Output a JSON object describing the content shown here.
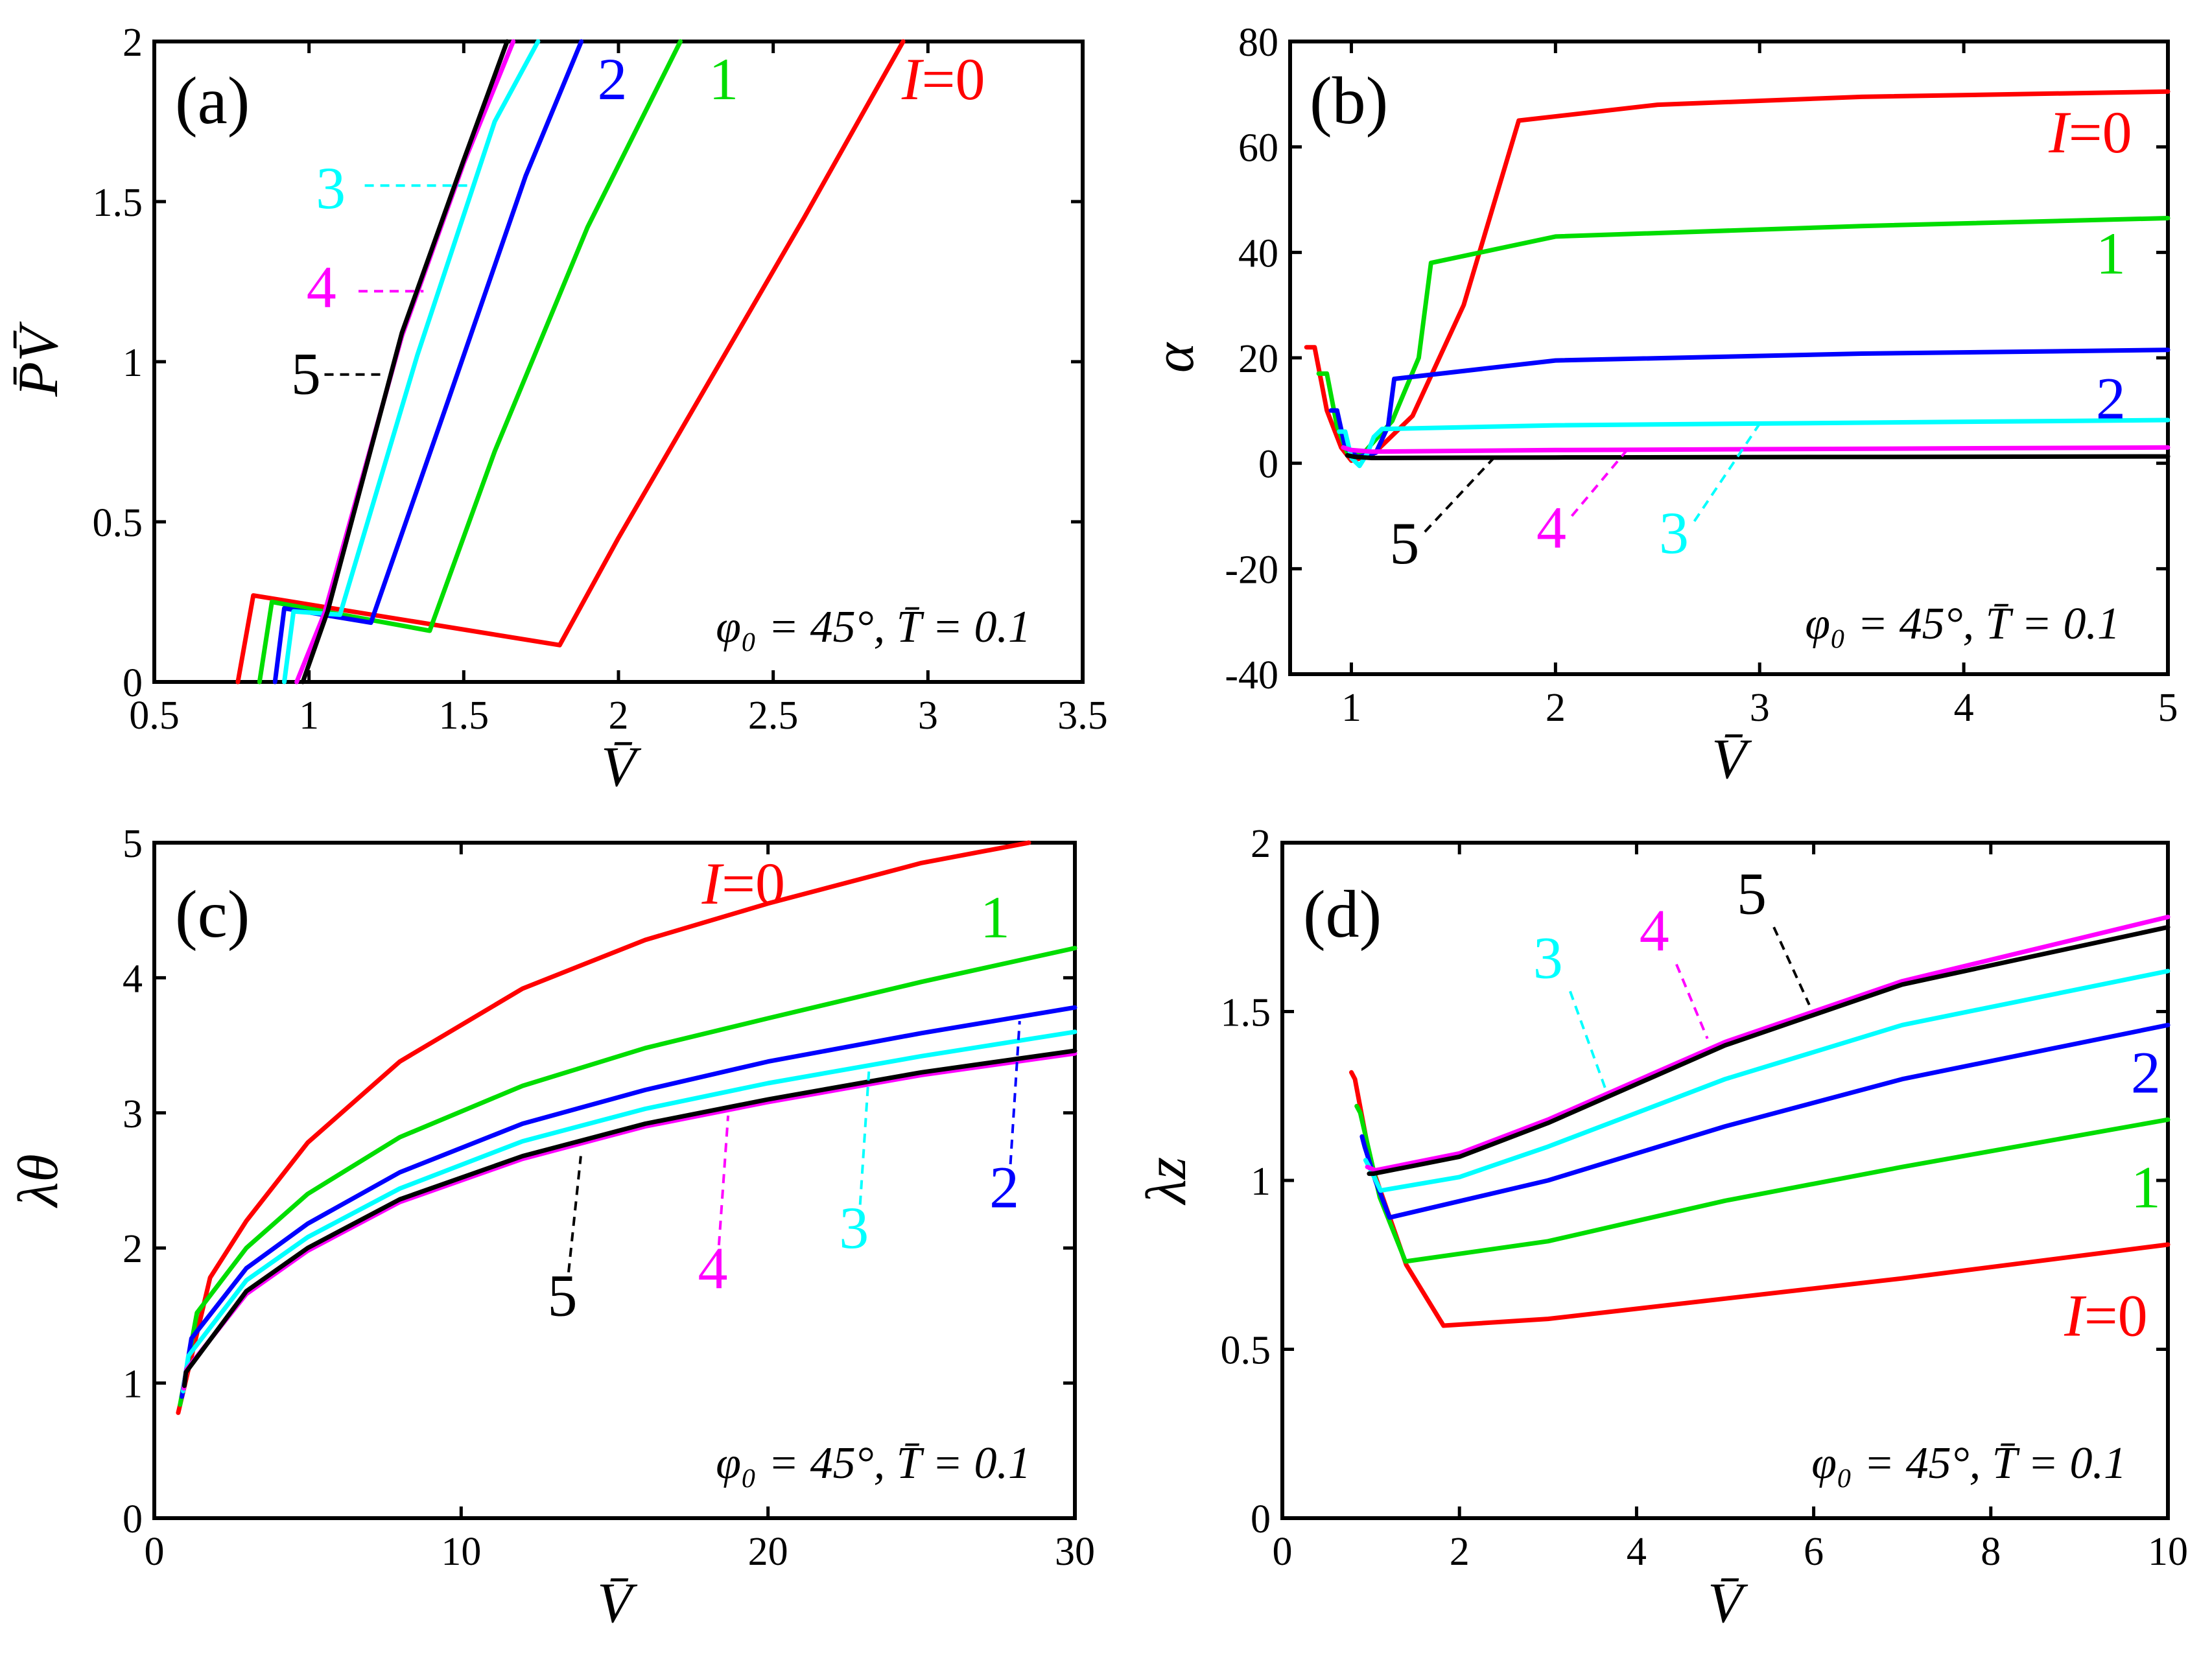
{
  "colors": {
    "I0": "#ff0000",
    "I1": "#00dd00",
    "I2": "#0000ff",
    "I3": "#00ffff",
    "I4": "#ff00ff",
    "I5": "#000000"
  },
  "chart_data": [
    {
      "id": "a",
      "type": "line",
      "panel_label": "(a)",
      "xlabel": "V̄",
      "ylabel": "P̄V̄",
      "xlim": [
        0.5,
        3.5
      ],
      "ylim": [
        0,
        2
      ],
      "xticks": [
        "0.5",
        "1",
        "1.5",
        "2",
        "2.5",
        "3",
        "3.5"
      ],
      "yticks": [
        "0",
        "0.5",
        "1",
        "1.5",
        "2"
      ],
      "annotation": "φ₀ = 45°, T̄ = 0.1",
      "series": [
        {
          "name": "I=0",
          "label_prefix": "I",
          "label": "=0",
          "color_key": "I0",
          "x": [
            0.77,
            0.82,
            1.81,
            2.0,
            2.3,
            2.6,
            2.92
          ],
          "y": [
            0,
            0.27,
            0.115,
            0.45,
            0.95,
            1.45,
            2.0
          ]
        },
        {
          "name": "1",
          "label": "1",
          "color_key": "I1",
          "x": [
            0.84,
            0.88,
            1.39,
            1.6,
            1.9,
            2.2
          ],
          "y": [
            0,
            0.25,
            0.16,
            0.72,
            1.42,
            2.0
          ]
        },
        {
          "name": "2",
          "label": "2",
          "color_key": "I2",
          "x": [
            0.89,
            0.92,
            1.2,
            1.45,
            1.7,
            1.88
          ],
          "y": [
            0,
            0.23,
            0.185,
            0.88,
            1.58,
            2.0
          ]
        },
        {
          "name": "3",
          "label": "3",
          "color_key": "I3",
          "x": [
            0.92,
            0.95,
            1.1,
            1.35,
            1.6,
            1.74
          ],
          "y": [
            0,
            0.22,
            0.21,
            1.02,
            1.75,
            2.0
          ]
        },
        {
          "name": "4",
          "label": "4",
          "color_key": "I4",
          "x": [
            0.96,
            1.05,
            1.3,
            1.5,
            1.66
          ],
          "y": [
            0,
            0.215,
            1.08,
            1.62,
            2.0
          ]
        },
        {
          "name": "5",
          "label": "5",
          "color_key": "I5",
          "x": [
            0.98,
            1.06,
            1.3,
            1.5,
            1.64
          ],
          "y": [
            0,
            0.22,
            1.09,
            1.63,
            2.0
          ]
        }
      ],
      "labels": [
        {
          "text_key": "I0",
          "at": [
            3.05,
            1.82
          ],
          "anchor": "middle",
          "italic_prefix": true
        },
        {
          "text_key": "1",
          "at": [
            2.34,
            1.82
          ],
          "anchor": "middle"
        },
        {
          "text_key": "2",
          "at": [
            1.98,
            1.82
          ],
          "anchor": "middle"
        },
        {
          "text_key": "3",
          "at": [
            1.07,
            1.48
          ],
          "anchor": "middle",
          "leader": [
            [
              1.18,
              1.55
            ],
            [
              1.53,
              1.55
            ]
          ]
        },
        {
          "text_key": "4",
          "at": [
            1.04,
            1.17
          ],
          "anchor": "middle",
          "leader": [
            [
              1.16,
              1.22
            ],
            [
              1.37,
              1.22
            ]
          ]
        },
        {
          "text_key": "5",
          "at": [
            0.99,
            0.9
          ],
          "anchor": "middle",
          "leader": [
            [
              1.05,
              0.96
            ],
            [
              1.25,
              0.96
            ]
          ]
        }
      ]
    },
    {
      "id": "b",
      "type": "line",
      "panel_label": "(b)",
      "xlabel": "V̄",
      "ylabel": "α",
      "xlim": [
        0.7,
        5
      ],
      "ylim": [
        -40,
        80
      ],
      "xticks": [
        "1",
        "2",
        "3",
        "4",
        "5"
      ],
      "yticks": [
        "-40",
        "-20",
        "0",
        "20",
        "40",
        "60",
        "80"
      ],
      "annotation": "φ₀ = 45°, T̄ = 0.1",
      "series": [
        {
          "name": "I=0",
          "color_key": "I0",
          "x": [
            0.78,
            0.82,
            0.88,
            0.95,
            1.0,
            1.1,
            1.3,
            1.55,
            1.82,
            2.5,
            3.5,
            5.0
          ],
          "y": [
            22,
            22,
            10,
            3,
            0.5,
            1.5,
            9,
            30,
            65,
            68,
            69.5,
            70.5
          ]
        },
        {
          "name": "1",
          "color_key": "I1",
          "x": [
            0.84,
            0.88,
            0.93,
            0.98,
            1.05,
            1.2,
            1.33,
            1.39,
            2.0,
            3.5,
            5.0
          ],
          "y": [
            17,
            17,
            7,
            2,
            1.5,
            8,
            20,
            38,
            43,
            45,
            46.5
          ]
        },
        {
          "name": "2",
          "color_key": "I2",
          "x": [
            0.9,
            0.93,
            0.97,
            1.03,
            1.12,
            1.18,
            1.21,
            2.0,
            3.5,
            5.0
          ],
          "y": [
            10,
            10,
            3,
            1.2,
            2,
            7,
            16,
            19.5,
            20.8,
            21.5
          ]
        },
        {
          "name": "3",
          "color_key": "I3",
          "x": [
            0.94,
            0.97,
            1.0,
            1.04,
            1.08,
            1.11,
            1.15,
            2.0,
            5.0
          ],
          "y": [
            6,
            6,
            1,
            -0.5,
            2,
            5,
            6.5,
            7.2,
            8.2
          ]
        },
        {
          "name": "4",
          "color_key": "I4",
          "x": [
            0.96,
            1.0,
            1.1,
            2.0,
            5.0
          ],
          "y": [
            3,
            2.5,
            2.2,
            2.5,
            3
          ]
        },
        {
          "name": "5",
          "color_key": "I5",
          "x": [
            0.98,
            1.02,
            1.1,
            2.0,
            5.0
          ],
          "y": [
            1.5,
            1.2,
            1.0,
            1.1,
            1.3
          ]
        }
      ],
      "labels": [
        {
          "text_key": "I0",
          "at": [
            4.62,
            59
          ],
          "anchor": "middle",
          "italic_prefix": true
        },
        {
          "text_key": "1",
          "at": [
            4.72,
            36
          ],
          "anchor": "middle"
        },
        {
          "text_key": "2",
          "at": [
            4.72,
            8.5
          ],
          "anchor": "middle"
        },
        {
          "text_key": "3",
          "at": [
            2.58,
            -17
          ],
          "anchor": "middle",
          "leader": [
            [
              2.68,
              -11
            ],
            [
              3.0,
              7.5
            ]
          ]
        },
        {
          "text_key": "4",
          "at": [
            1.98,
            -16
          ],
          "anchor": "middle",
          "leader": [
            [
              2.08,
              -10
            ],
            [
              2.35,
              2.5
            ]
          ]
        },
        {
          "text_key": "5",
          "at": [
            1.26,
            -19
          ],
          "anchor": "middle",
          "leader": [
            [
              1.36,
              -13
            ],
            [
              1.7,
              1.1
            ]
          ]
        }
      ]
    },
    {
      "id": "c",
      "type": "line",
      "panel_label": "(c)",
      "xlabel": "V̄",
      "ylabel": "λθ",
      "xlim": [
        0,
        30
      ],
      "ylim": [
        0,
        5
      ],
      "xticks": [
        "0",
        "10",
        "20",
        "30"
      ],
      "yticks": [
        "0",
        "1",
        "2",
        "3",
        "4",
        "5"
      ],
      "annotation": "φ₀ = 45°, T̄ = 0.1",
      "series": [
        {
          "name": "I=0",
          "color_key": "I0",
          "x": [
            0.78,
            1.82,
            3,
            5,
            8,
            12,
            16,
            20,
            25,
            28.5
          ],
          "y": [
            0.78,
            1.78,
            2.2,
            2.78,
            3.38,
            3.92,
            4.28,
            4.55,
            4.85,
            5.0
          ]
        },
        {
          "name": "1",
          "color_key": "I1",
          "x": [
            0.84,
            1.39,
            3,
            5,
            8,
            12,
            16,
            20,
            25,
            30
          ],
          "y": [
            0.84,
            1.52,
            2.0,
            2.4,
            2.82,
            3.2,
            3.48,
            3.7,
            3.97,
            4.22
          ]
        },
        {
          "name": "2",
          "color_key": "I2",
          "x": [
            0.9,
            1.21,
            3,
            5,
            8,
            12,
            16,
            20,
            25,
            30
          ],
          "y": [
            0.9,
            1.33,
            1.85,
            2.18,
            2.56,
            2.92,
            3.17,
            3.38,
            3.59,
            3.78
          ]
        },
        {
          "name": "3",
          "color_key": "I3",
          "x": [
            0.94,
            1.11,
            3,
            5,
            8,
            12,
            16,
            20,
            25,
            30
          ],
          "y": [
            0.94,
            1.2,
            1.76,
            2.08,
            2.44,
            2.79,
            3.03,
            3.22,
            3.42,
            3.6
          ]
        },
        {
          "name": "4",
          "color_key": "I4",
          "x": [
            0.96,
            1.05,
            3,
            5,
            8,
            12,
            16,
            20,
            25,
            30
          ],
          "y": [
            0.96,
            1.1,
            1.66,
            1.98,
            2.34,
            2.66,
            2.9,
            3.08,
            3.28,
            3.44
          ]
        },
        {
          "name": "5",
          "color_key": "I5",
          "x": [
            0.98,
            1.03,
            3,
            5,
            8,
            12,
            16,
            20,
            25,
            30
          ],
          "y": [
            0.98,
            1.08,
            1.68,
            2.0,
            2.36,
            2.68,
            2.92,
            3.1,
            3.3,
            3.46
          ]
        }
      ],
      "labels": [
        {
          "text_key": "I0",
          "at": [
            19.2,
            4.55
          ],
          "anchor": "middle",
          "italic_prefix": true
        },
        {
          "text_key": "1",
          "at": [
            27.4,
            4.3
          ],
          "anchor": "middle"
        },
        {
          "text_key": "2",
          "at": [
            27.7,
            2.3
          ],
          "anchor": "middle",
          "leader": [
            [
              27.9,
              2.62
            ],
            [
              28.2,
              3.68
            ]
          ]
        },
        {
          "text_key": "3",
          "at": [
            22.8,
            2.0
          ],
          "anchor": "middle",
          "leader": [
            [
              23.0,
              2.32
            ],
            [
              23.3,
              3.35
            ]
          ]
        },
        {
          "text_key": "4",
          "at": [
            18.2,
            1.7
          ],
          "anchor": "middle",
          "leader": [
            [
              18.4,
              2.02
            ],
            [
              18.7,
              2.98
            ]
          ]
        },
        {
          "text_key": "5",
          "at": [
            13.3,
            1.5
          ],
          "anchor": "middle",
          "leader": [
            [
              13.5,
              1.82
            ],
            [
              13.9,
              2.68
            ]
          ]
        }
      ]
    },
    {
      "id": "d",
      "type": "line",
      "panel_label": "(d)",
      "xlabel": "V̄",
      "ylabel": "λz",
      "xlim": [
        0,
        10
      ],
      "ylim": [
        0,
        2
      ],
      "xticks": [
        "0",
        "2",
        "4",
        "6",
        "8",
        "10"
      ],
      "yticks": [
        "0",
        "0.5",
        "1",
        "1.5",
        "2"
      ],
      "annotation": "φ₀ = 45°, T̄ = 0.1",
      "series": [
        {
          "name": "I=0",
          "color_key": "I0",
          "x": [
            0.78,
            0.82,
            1.0,
            1.4,
            1.82,
            3,
            5,
            7,
            10
          ],
          "y": [
            1.32,
            1.3,
            1.05,
            0.75,
            0.57,
            0.59,
            0.65,
            0.71,
            0.81
          ]
        },
        {
          "name": "1",
          "color_key": "I1",
          "x": [
            0.84,
            0.88,
            1.1,
            1.39,
            3,
            5,
            7,
            10
          ],
          "y": [
            1.22,
            1.2,
            0.95,
            0.76,
            0.82,
            0.94,
            1.04,
            1.18
          ]
        },
        {
          "name": "2",
          "color_key": "I2",
          "x": [
            0.9,
            0.93,
            1.05,
            1.21,
            3,
            5,
            7,
            10
          ],
          "y": [
            1.13,
            1.1,
            1.0,
            0.89,
            1.0,
            1.16,
            1.3,
            1.46
          ]
        },
        {
          "name": "3",
          "color_key": "I3",
          "x": [
            0.94,
            1.0,
            1.11,
            2,
            3,
            5,
            7,
            10
          ],
          "y": [
            1.06,
            1.03,
            0.97,
            1.01,
            1.1,
            1.3,
            1.46,
            1.62
          ]
        },
        {
          "name": "4",
          "color_key": "I4",
          "x": [
            0.96,
            1.05,
            2,
            3,
            5,
            7,
            10
          ],
          "y": [
            1.04,
            1.03,
            1.08,
            1.18,
            1.41,
            1.59,
            1.78
          ]
        },
        {
          "name": "5",
          "color_key": "I5",
          "x": [
            0.98,
            1.03,
            2,
            3,
            5,
            7,
            10
          ],
          "y": [
            1.02,
            1.02,
            1.07,
            1.17,
            1.4,
            1.58,
            1.75
          ]
        }
      ],
      "labels": [
        {
          "text_key": "I0",
          "at": [
            9.3,
            0.54
          ],
          "anchor": "middle",
          "italic_prefix": true
        },
        {
          "text_key": "1",
          "at": [
            9.75,
            0.92
          ],
          "anchor": "middle"
        },
        {
          "text_key": "2",
          "at": [
            9.75,
            1.26
          ],
          "anchor": "middle"
        },
        {
          "text_key": "3",
          "at": [
            3.0,
            1.6
          ],
          "anchor": "middle",
          "leader": [
            [
              3.25,
              1.56
            ],
            [
              3.65,
              1.27
            ]
          ]
        },
        {
          "text_key": "4",
          "at": [
            4.2,
            1.68
          ],
          "anchor": "middle",
          "leader": [
            [
              4.45,
              1.64
            ],
            [
              4.8,
              1.42
            ]
          ]
        },
        {
          "text_key": "5",
          "at": [
            5.3,
            1.79
          ],
          "anchor": "middle",
          "leader": [
            [
              5.55,
              1.75
            ],
            [
              5.95,
              1.52
            ]
          ]
        }
      ]
    }
  ],
  "label_texts": {
    "I0_prefix": "I",
    "I0_suffix": "=0",
    "1": "1",
    "2": "2",
    "3": "3",
    "4": "4",
    "5": "5"
  }
}
